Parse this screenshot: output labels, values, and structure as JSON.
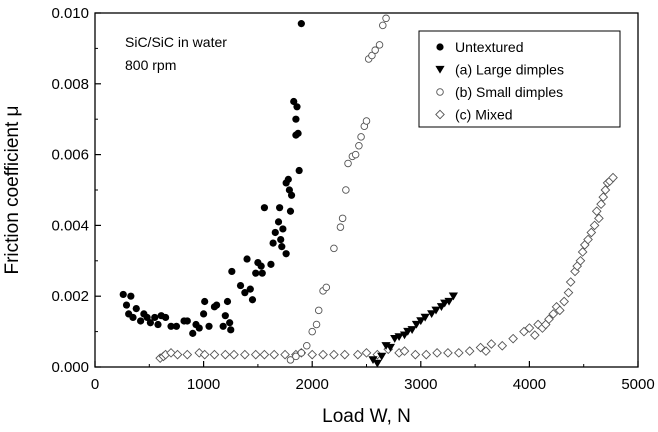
{
  "chart_data": {
    "type": "scatter",
    "xlabel": "Load W, N",
    "ylabel": "Friction coefficient μ",
    "xlim": [
      0,
      5000
    ],
    "ylim": [
      0,
      0.01
    ],
    "x_ticks": [
      "0",
      "1000",
      "2000",
      "3000",
      "4000",
      "5000"
    ],
    "y_ticks": [
      "0.000",
      "0.002",
      "0.004",
      "0.006",
      "0.008",
      "0.010"
    ],
    "annotations": [
      "SiC/SiC in water",
      "800 rpm"
    ],
    "grid": false,
    "legend_position": "top-right",
    "series": [
      {
        "name": "Untextured",
        "marker": "filled-circle",
        "points": [
          [
            260,
            0.00205
          ],
          [
            290,
            0.00175
          ],
          [
            310,
            0.0015
          ],
          [
            330,
            0.002
          ],
          [
            350,
            0.0014
          ],
          [
            380,
            0.00165
          ],
          [
            420,
            0.0013
          ],
          [
            450,
            0.0015
          ],
          [
            480,
            0.0014
          ],
          [
            510,
            0.00125
          ],
          [
            550,
            0.0014
          ],
          [
            580,
            0.0012
          ],
          [
            610,
            0.00145
          ],
          [
            650,
            0.0014
          ],
          [
            700,
            0.00115
          ],
          [
            750,
            0.00115
          ],
          [
            820,
            0.0013
          ],
          [
            850,
            0.0013
          ],
          [
            900,
            0.00095
          ],
          [
            930,
            0.0012
          ],
          [
            960,
            0.0011
          ],
          [
            1000,
            0.0015
          ],
          [
            1010,
            0.00185
          ],
          [
            1050,
            0.00115
          ],
          [
            1100,
            0.0017
          ],
          [
            1120,
            0.00175
          ],
          [
            1180,
            0.00115
          ],
          [
            1200,
            0.00145
          ],
          [
            1220,
            0.00185
          ],
          [
            1240,
            0.00125
          ],
          [
            1250,
            0.00105
          ],
          [
            1260,
            0.0027
          ],
          [
            1340,
            0.0023
          ],
          [
            1380,
            0.0021
          ],
          [
            1400,
            0.00305
          ],
          [
            1430,
            0.0022
          ],
          [
            1450,
            0.0019
          ],
          [
            1480,
            0.00265
          ],
          [
            1500,
            0.00295
          ],
          [
            1530,
            0.00285
          ],
          [
            1540,
            0.00265
          ],
          [
            1560,
            0.0045
          ],
          [
            1620,
            0.0029
          ],
          [
            1640,
            0.0035
          ],
          [
            1660,
            0.0038
          ],
          [
            1690,
            0.0041
          ],
          [
            1700,
            0.0045
          ],
          [
            1710,
            0.0036
          ],
          [
            1720,
            0.0034
          ],
          [
            1730,
            0.0039
          ],
          [
            1760,
            0.0052
          ],
          [
            1760,
            0.0032
          ],
          [
            1780,
            0.0053
          ],
          [
            1790,
            0.005
          ],
          [
            1800,
            0.0044
          ],
          [
            1810,
            0.00485
          ],
          [
            1830,
            0.0075
          ],
          [
            1850,
            0.007
          ],
          [
            1850,
            0.00655
          ],
          [
            1860,
            0.00735
          ],
          [
            1870,
            0.0066
          ],
          [
            1880,
            0.00555
          ],
          [
            1900,
            0.0097
          ]
        ]
      },
      {
        "name": "(a) Large dimples",
        "marker": "filled-triangle-down",
        "points": [
          [
            2560,
            0.0002
          ],
          [
            2600,
            0.0001
          ],
          [
            2640,
            0.0003
          ],
          [
            2680,
            0.0006
          ],
          [
            2720,
            0.00055
          ],
          [
            2760,
            0.0008
          ],
          [
            2800,
            0.00085
          ],
          [
            2850,
            0.0009
          ],
          [
            2880,
            0.001
          ],
          [
            2920,
            0.00105
          ],
          [
            2960,
            0.0012
          ],
          [
            3000,
            0.0013
          ],
          [
            3040,
            0.0014
          ],
          [
            3100,
            0.0015
          ],
          [
            3140,
            0.0016
          ],
          [
            3190,
            0.0017
          ],
          [
            3220,
            0.0018
          ],
          [
            3260,
            0.00185
          ],
          [
            3300,
            0.002
          ]
        ]
      },
      {
        "name": "(b) Small dimples",
        "marker": "open-circle",
        "points": [
          [
            1800,
            0.0002
          ],
          [
            1850,
            0.0003
          ],
          [
            1900,
            0.0004
          ],
          [
            1950,
            0.0006
          ],
          [
            2000,
            0.001
          ],
          [
            2040,
            0.0012
          ],
          [
            2060,
            0.0016
          ],
          [
            2100,
            0.00215
          ],
          [
            2130,
            0.00225
          ],
          [
            2200,
            0.00335
          ],
          [
            2260,
            0.00395
          ],
          [
            2280,
            0.0042
          ],
          [
            2310,
            0.005
          ],
          [
            2330,
            0.00575
          ],
          [
            2370,
            0.00595
          ],
          [
            2400,
            0.006
          ],
          [
            2430,
            0.00625
          ],
          [
            2450,
            0.0065
          ],
          [
            2480,
            0.0068
          ],
          [
            2500,
            0.00695
          ],
          [
            2520,
            0.0087
          ],
          [
            2550,
            0.0088
          ],
          [
            2580,
            0.00895
          ],
          [
            2620,
            0.0091
          ],
          [
            2650,
            0.00965
          ],
          [
            2680,
            0.00985
          ]
        ]
      },
      {
        "name": "(c) Mixed",
        "marker": "open-diamond",
        "points": [
          [
            600,
            0.00025
          ],
          [
            630,
            0.0003
          ],
          [
            650,
            0.00035
          ],
          [
            700,
            0.0004
          ],
          [
            760,
            0.00035
          ],
          [
            850,
            0.00035
          ],
          [
            960,
            0.0004
          ],
          [
            1010,
            0.00035
          ],
          [
            1100,
            0.00035
          ],
          [
            1200,
            0.00035
          ],
          [
            1280,
            0.00035
          ],
          [
            1380,
            0.00035
          ],
          [
            1480,
            0.00035
          ],
          [
            1560,
            0.00035
          ],
          [
            1650,
            0.00035
          ],
          [
            1750,
            0.00035
          ],
          [
            1850,
            0.00035
          ],
          [
            1900,
            0.0004
          ],
          [
            2000,
            0.00035
          ],
          [
            2100,
            0.00035
          ],
          [
            2200,
            0.00035
          ],
          [
            2300,
            0.00035
          ],
          [
            2420,
            0.00035
          ],
          [
            2500,
            0.0004
          ],
          [
            2600,
            0.00035
          ],
          [
            2700,
            0.0005
          ],
          [
            2800,
            0.0004
          ],
          [
            2850,
            0.00045
          ],
          [
            2950,
            0.00035
          ],
          [
            3050,
            0.00035
          ],
          [
            3150,
            0.0004
          ],
          [
            3250,
            0.0004
          ],
          [
            3350,
            0.0004
          ],
          [
            3450,
            0.00045
          ],
          [
            3550,
            0.00055
          ],
          [
            3600,
            0.00045
          ],
          [
            3650,
            0.00065
          ],
          [
            3750,
            0.0006
          ],
          [
            3850,
            0.0008
          ],
          [
            3950,
            0.001
          ],
          [
            4000,
            0.0011
          ],
          [
            4050,
            0.0009
          ],
          [
            4080,
            0.0012
          ],
          [
            4120,
            0.0011
          ],
          [
            4150,
            0.0012
          ],
          [
            4180,
            0.00135
          ],
          [
            4220,
            0.0015
          ],
          [
            4250,
            0.0017
          ],
          [
            4280,
            0.0016
          ],
          [
            4320,
            0.00185
          ],
          [
            4360,
            0.0021
          ],
          [
            4380,
            0.0024
          ],
          [
            4420,
            0.0027
          ],
          [
            4440,
            0.00285
          ],
          [
            4470,
            0.003
          ],
          [
            4490,
            0.00325
          ],
          [
            4510,
            0.00345
          ],
          [
            4540,
            0.0036
          ],
          [
            4570,
            0.0038
          ],
          [
            4600,
            0.004
          ],
          [
            4620,
            0.0044
          ],
          [
            4640,
            0.0042
          ],
          [
            4660,
            0.0046
          ],
          [
            4680,
            0.0048
          ],
          [
            4700,
            0.005
          ],
          [
            4720,
            0.0052
          ],
          [
            4740,
            0.00525
          ],
          [
            4770,
            0.00535
          ]
        ]
      }
    ]
  }
}
